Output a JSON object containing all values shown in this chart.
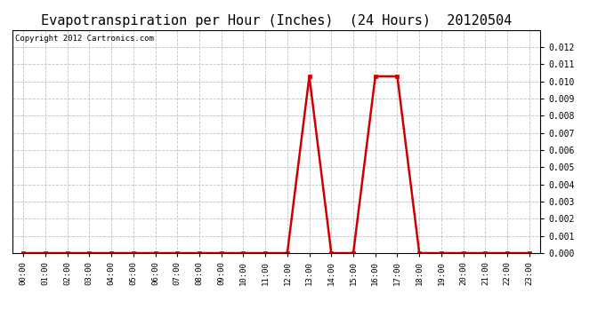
{
  "title": "Evapotranspiration per Hour (Inches)  (24 Hours)  20120504",
  "copyright_text": "Copyright 2012 Cartronics.com",
  "hours": [
    0,
    1,
    2,
    3,
    4,
    5,
    6,
    7,
    8,
    9,
    10,
    11,
    12,
    13,
    14,
    15,
    16,
    17,
    18,
    19,
    20,
    21,
    22,
    23
  ],
  "values": [
    0.0,
    0.0,
    0.0,
    0.0,
    0.0,
    0.0,
    0.0,
    0.0,
    0.0,
    0.0,
    0.0,
    0.0,
    0.0,
    0.0103,
    0.0,
    0.0,
    0.0103,
    0.0103,
    0.0,
    0.0,
    0.0,
    0.0,
    0.0,
    0.0
  ],
  "line_color": "#cc0000",
  "marker": "s",
  "marker_size": 2.5,
  "bg_color": "#ffffff",
  "plot_bg_color": "#ffffff",
  "grid_color": "#c0c0c0",
  "title_fontsize": 11,
  "copyright_fontsize": 6.5,
  "tick_label_fontsize": 6.5,
  "ytick_label_fontsize": 7,
  "ylim": [
    0.0,
    0.013
  ],
  "yticks": [
    0.0,
    0.001,
    0.002,
    0.003,
    0.004,
    0.005,
    0.006,
    0.007,
    0.008,
    0.009,
    0.01,
    0.011,
    0.012
  ],
  "xlabel_labels": [
    "00:00",
    "01:00",
    "02:00",
    "03:00",
    "04:00",
    "05:00",
    "06:00",
    "07:00",
    "08:00",
    "09:00",
    "10:00",
    "11:00",
    "12:00",
    "13:00",
    "14:00",
    "15:00",
    "16:00",
    "17:00",
    "18:00",
    "19:00",
    "20:00",
    "21:00",
    "22:00",
    "23:00"
  ]
}
